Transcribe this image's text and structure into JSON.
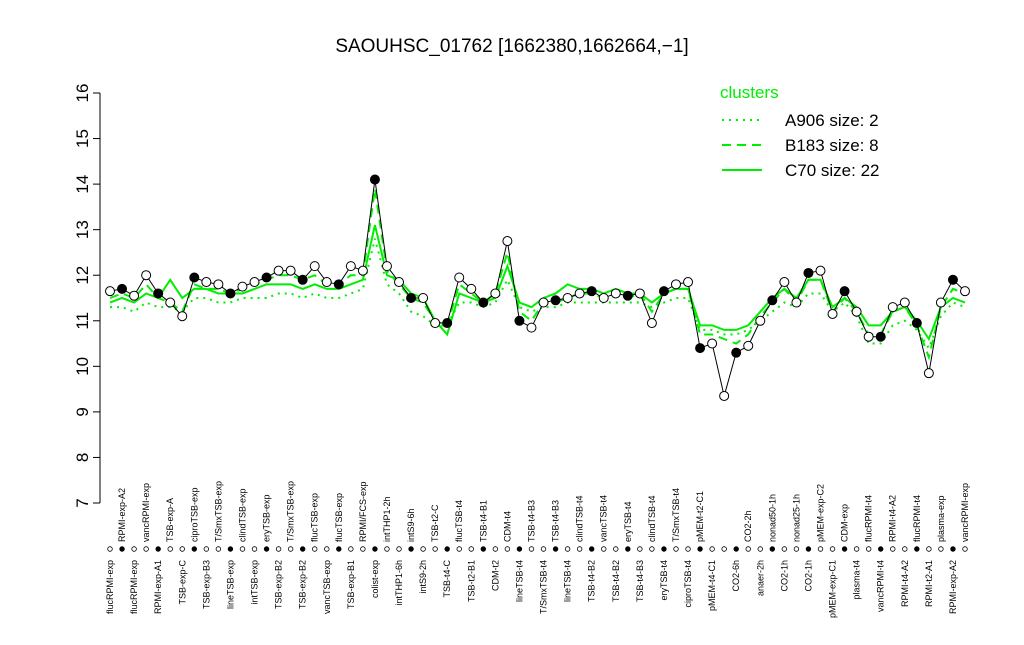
{
  "chart_data": {
    "type": "line",
    "title": "SAOUHSC_01762 [1662380,1662664,−1]",
    "legend_title": "clusters",
    "legend_color": "#00ee00",
    "ylim": [
      7,
      16
    ],
    "yticks": [
      7,
      8,
      9,
      10,
      11,
      12,
      13,
      14,
      15,
      16
    ],
    "categories": [
      "flucRPMI-exp",
      "RPMI-exp-A2",
      "flucRPMI-exp",
      "vancRPMI-exp",
      "RPMI-exp-A1",
      "TSB-exp-A",
      "TSB-exp-C",
      "ciproTSB-exp",
      "TSB-exp-B3",
      "T/SmxTSB-exp",
      "lineTSB-exp",
      "clindTSB-exp",
      "intTSB-exp",
      "eryTSB-exp",
      "TSB-exp-B2",
      "T/SmxTSB-exp",
      "TSB-exp-B2",
      "flucTSB-exp",
      "vancTSB-exp",
      "flucTSB-exp",
      "TSB-exp-B1",
      "RPMI/FCS-exp",
      "colist-exp",
      "intTHP1-2h",
      "intTHP1-6h",
      "intS9-6h",
      "intS9-2h",
      "TSB-t2-C",
      "TSB-t4-C",
      "flucTSB-t4",
      "TSB-t2-B1",
      "TSB-t4-B1",
      "CDM-t2",
      "CDM-t4",
      "lineTSB-t4",
      "TSB-t4-B3",
      "T/SmxTSB-t4",
      "TSB-t4-B3",
      "lineTSB-t4",
      "clindTSB-t4",
      "TSB-t4-B2",
      "vancTSB-t4",
      "TSB-t4-B2",
      "eryTSB-t4",
      "TSB-t4-B3",
      "clindTSB-t4",
      "eryTSB-t4",
      "T/SmxTSB-t4",
      "ciproTSB-t4",
      "pMEM-t2-C1",
      "pMEM-t4-C1",
      null,
      "CO2-6h",
      "CO2-2h",
      "anaer-2h",
      "nonad50-1h",
      "CO2-1h",
      "nonad25-1h",
      "CO2-1h",
      "pMEM-exp-C2",
      "pMEM-exp-C1",
      "CDM-exp",
      "plasma-t4",
      "flucRPMI-t4",
      "vancRPMI-t4",
      "RPMI-t4-A2",
      "RPMI-t4-A2",
      "flucRPMI-t4",
      "RPMI-t2-A1",
      "plasma-exp",
      "RPMI-exp-A2",
      "vancRPMI-exp"
    ],
    "points": [
      11.65,
      11.7,
      11.55,
      12.0,
      11.6,
      11.4,
      11.1,
      11.95,
      11.85,
      11.8,
      11.6,
      11.75,
      11.85,
      11.95,
      12.1,
      12.1,
      11.9,
      12.2,
      11.85,
      11.8,
      12.2,
      12.1,
      14.1,
      12.2,
      11.85,
      11.5,
      11.5,
      10.95,
      10.95,
      11.95,
      11.7,
      11.4,
      11.6,
      12.75,
      11.0,
      10.85,
      11.4,
      11.45,
      11.5,
      11.6,
      11.65,
      11.5,
      11.6,
      11.55,
      11.6,
      10.95,
      11.65,
      11.8,
      11.85,
      10.4,
      10.5,
      9.35,
      10.3,
      10.45,
      11.0,
      11.45,
      11.85,
      11.4,
      12.05,
      12.1,
      11.15,
      11.65,
      11.2,
      10.65,
      10.65,
      11.3,
      11.4,
      10.95,
      9.85,
      11.4,
      11.9,
      11.65
    ],
    "series": [
      {
        "name": "A906 size: 2",
        "color": "#00ee00",
        "dash": "2,5",
        "values": [
          11.3,
          11.3,
          11.2,
          11.4,
          11.3,
          11.3,
          11.2,
          11.5,
          11.5,
          11.4,
          11.4,
          11.5,
          11.5,
          11.5,
          11.6,
          11.6,
          11.5,
          11.6,
          11.5,
          11.5,
          11.6,
          11.7,
          12.8,
          11.8,
          11.6,
          11.2,
          11.1,
          10.9,
          10.9,
          11.4,
          11.4,
          11.3,
          11.4,
          11.9,
          11.3,
          11.2,
          11.3,
          11.3,
          11.4,
          11.4,
          11.4,
          11.4,
          11.4,
          11.4,
          11.4,
          11.3,
          11.4,
          11.5,
          11.5,
          10.8,
          10.8,
          10.7,
          10.7,
          10.8,
          11.0,
          11.2,
          11.4,
          11.3,
          11.6,
          11.6,
          11.2,
          11.4,
          11.1,
          10.5,
          10.5,
          10.9,
          11.0,
          10.8,
          10.4,
          11.1,
          11.4,
          11.3
        ]
      },
      {
        "name": "B183 size: 8",
        "color": "#00ee00",
        "dash": "9,6",
        "values": [
          11.5,
          11.6,
          11.5,
          11.8,
          11.5,
          11.4,
          11.2,
          11.8,
          11.7,
          11.7,
          11.6,
          11.7,
          11.8,
          11.9,
          12.0,
          12.0,
          11.9,
          12.0,
          11.8,
          11.8,
          12.0,
          12.0,
          13.9,
          12.1,
          11.8,
          11.5,
          11.4,
          11.0,
          10.9,
          11.8,
          11.6,
          11.4,
          11.6,
          12.5,
          11.2,
          11.0,
          11.4,
          11.4,
          11.5,
          11.6,
          11.6,
          11.5,
          11.6,
          11.5,
          11.6,
          11.2,
          11.6,
          11.7,
          11.7,
          10.7,
          10.7,
          10.6,
          10.5,
          10.7,
          11.1,
          11.4,
          11.7,
          11.4,
          11.9,
          11.9,
          11.2,
          11.5,
          11.2,
          10.7,
          10.7,
          11.2,
          11.3,
          10.9,
          10.2,
          11.3,
          11.7,
          11.6
        ]
      },
      {
        "name": "C70 size: 22",
        "color": "#00ee00",
        "dash": "",
        "values": [
          11.4,
          11.5,
          11.4,
          11.6,
          11.5,
          11.9,
          11.5,
          11.7,
          11.7,
          11.6,
          11.6,
          11.6,
          11.7,
          11.8,
          11.8,
          11.8,
          11.7,
          11.8,
          11.7,
          11.7,
          11.8,
          11.9,
          13.1,
          12.0,
          11.9,
          11.6,
          11.5,
          11.0,
          10.7,
          11.6,
          11.5,
          11.4,
          11.5,
          12.2,
          11.4,
          11.3,
          11.5,
          11.6,
          11.8,
          11.7,
          11.7,
          11.6,
          11.7,
          11.6,
          11.6,
          11.4,
          11.6,
          11.7,
          11.7,
          10.9,
          10.9,
          10.8,
          10.8,
          10.9,
          11.2,
          11.5,
          11.7,
          11.5,
          11.9,
          11.9,
          11.3,
          11.5,
          11.3,
          10.9,
          10.9,
          11.2,
          11.3,
          11.0,
          10.6,
          11.3,
          11.5,
          11.4
        ]
      }
    ]
  }
}
